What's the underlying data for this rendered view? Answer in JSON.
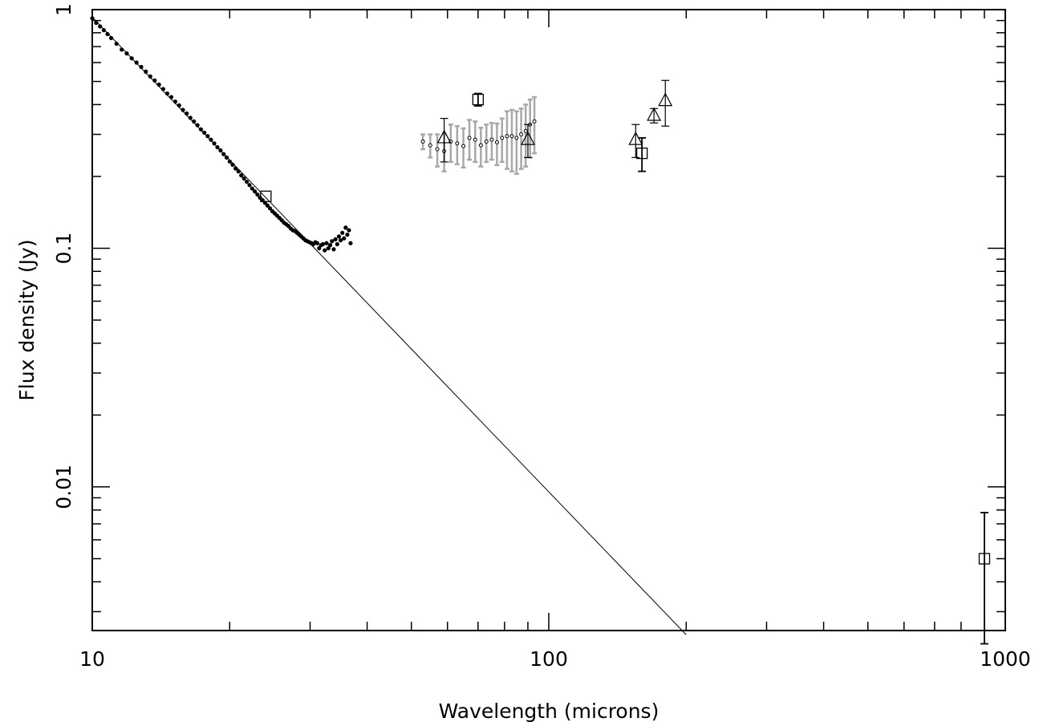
{
  "chart_data": {
    "type": "scatter",
    "title": "",
    "xlabel": "Wavelength (microns)",
    "ylabel": "Flux density (Jy)",
    "xscale": "log",
    "yscale": "log",
    "xlim": [
      10,
      1000
    ],
    "ylim": [
      0.0025,
      1
    ],
    "x_tick_labels": [
      {
        "value": 10,
        "label": "10"
      },
      {
        "value": 100,
        "label": "100"
      },
      {
        "value": 1000,
        "label": "1000"
      }
    ],
    "y_tick_labels": [
      {
        "value": 1,
        "label": "1"
      },
      {
        "value": 0.1,
        "label": "0.1"
      },
      {
        "value": 0.01,
        "label": "0.01"
      }
    ],
    "grid": false,
    "legend": "none",
    "colors": {
      "primary": "#000000",
      "errorbar_gray": "#a8a8a8"
    },
    "series": [
      {
        "kind": "dense-dots",
        "x": [
          10.0,
          10.2,
          10.4,
          10.6,
          10.8,
          11.0,
          11.3,
          11.6,
          11.9,
          12.2,
          12.5,
          12.8,
          13.1,
          13.4,
          13.7,
          14.0,
          14.3,
          14.6,
          14.9,
          15.2,
          15.5,
          15.8,
          16.1,
          16.4,
          16.7,
          17.0,
          17.3,
          17.6,
          17.9,
          18.2,
          18.5,
          18.8,
          19.1,
          19.4,
          19.7,
          20.0,
          20.3,
          20.6,
          20.9,
          21.2,
          21.5,
          21.8,
          22.1,
          22.4,
          22.7,
          23.0,
          23.3,
          23.6,
          23.9,
          24.2,
          24.5,
          24.8,
          25.1,
          25.4,
          25.7,
          26.0,
          26.3,
          26.6,
          26.9,
          27.2,
          27.5,
          27.8,
          28.1,
          28.4,
          28.7,
          29.0,
          29.3,
          29.6,
          29.9,
          30.2,
          30.5,
          30.8,
          31.1,
          31.4,
          31.7,
          32.0,
          32.3,
          32.6,
          32.9,
          33.2,
          33.5,
          33.8,
          34.1,
          34.4,
          34.7,
          35.0,
          35.3,
          35.6,
          35.9,
          36.2,
          36.5,
          36.8
        ],
        "y": [
          0.92,
          0.88,
          0.85,
          0.82,
          0.79,
          0.76,
          0.72,
          0.68,
          0.655,
          0.625,
          0.6,
          0.575,
          0.55,
          0.525,
          0.505,
          0.485,
          0.465,
          0.445,
          0.43,
          0.412,
          0.397,
          0.38,
          0.367,
          0.352,
          0.34,
          0.328,
          0.315,
          0.305,
          0.295,
          0.285,
          0.275,
          0.265,
          0.257,
          0.248,
          0.24,
          0.231,
          0.224,
          0.216,
          0.21,
          0.202,
          0.196,
          0.19,
          0.184,
          0.178,
          0.173,
          0.168,
          0.163,
          0.159,
          0.155,
          0.151,
          0.147,
          0.143,
          0.14,
          0.137,
          0.134,
          0.131,
          0.128,
          0.126,
          0.124,
          0.121,
          0.119,
          0.118,
          0.116,
          0.114,
          0.112,
          0.11,
          0.108,
          0.107,
          0.106,
          0.105,
          0.104,
          0.106,
          0.105,
          0.1,
          0.103,
          0.104,
          0.098,
          0.105,
          0.1,
          0.103,
          0.107,
          0.099,
          0.109,
          0.104,
          0.112,
          0.108,
          0.116,
          0.11,
          0.122,
          0.114,
          0.119,
          0.105
        ]
      },
      {
        "kind": "small-circles-gray-errorbars",
        "x": [
          53,
          55,
          57,
          59,
          61,
          63,
          65,
          67,
          69,
          71,
          73,
          75,
          77,
          79,
          81,
          83,
          85,
          87,
          89,
          91,
          93
        ],
        "y": [
          0.28,
          0.27,
          0.26,
          0.255,
          0.28,
          0.275,
          0.268,
          0.29,
          0.285,
          0.27,
          0.28,
          0.285,
          0.278,
          0.29,
          0.295,
          0.295,
          0.29,
          0.3,
          0.31,
          0.33,
          0.34
        ],
        "yerr": [
          0.02,
          0.03,
          0.04,
          0.045,
          0.05,
          0.05,
          0.05,
          0.055,
          0.055,
          0.05,
          0.05,
          0.05,
          0.055,
          0.06,
          0.08,
          0.085,
          0.085,
          0.085,
          0.09,
          0.09,
          0.09
        ]
      },
      {
        "kind": "triangles-errorbars",
        "x": [
          59,
          90,
          155,
          170,
          180
        ],
        "y": [
          0.29,
          0.285,
          0.285,
          0.36,
          0.415
        ],
        "yerr": [
          0.06,
          0.045,
          0.045,
          0.025,
          0.09
        ]
      },
      {
        "kind": "squares-errorbars",
        "x": [
          24,
          70,
          160,
          900
        ],
        "y": [
          0.165,
          0.42,
          0.25,
          0.005
        ],
        "yerr": [
          0,
          0.025,
          0.04,
          0.0028
        ]
      },
      {
        "kind": "power-law-line",
        "x": [
          10,
          200
        ],
        "y": [
          0.93,
          0.0024
        ]
      }
    ]
  }
}
